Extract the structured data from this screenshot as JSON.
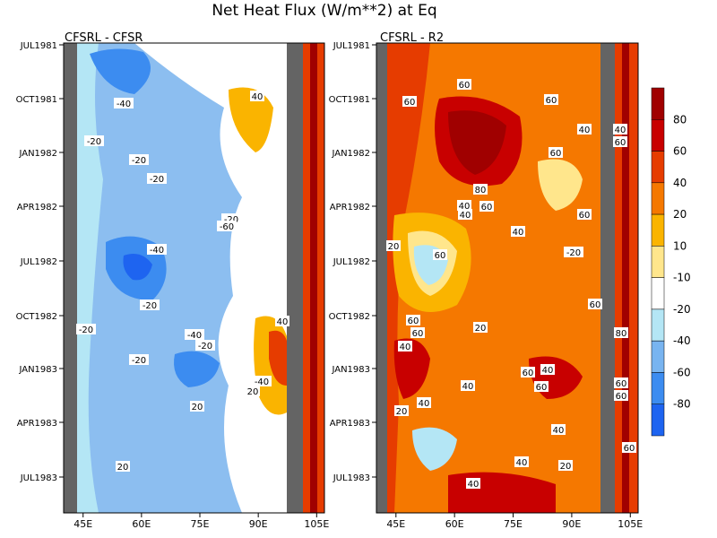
{
  "title": "Net Heat Flux (W/m**2) at Eq",
  "colors": {
    "land": "#646464",
    "levels": [
      "#1e64f0",
      "#3c8cf0",
      "#78b4f0",
      "#b4e6f5",
      "#ffffff",
      "#ffe68c",
      "#fab400",
      "#f57800",
      "#e63c00",
      "#c80000",
      "#a00000"
    ]
  },
  "chart_data": [
    {
      "type": "heatmap",
      "title": "CFSRL - CFSR",
      "xlabel": "",
      "ylabel": "",
      "x_ticks": [
        "45E",
        "60E",
        "75E",
        "90E",
        "105E"
      ],
      "x_tick_values": [
        45,
        60,
        75,
        90,
        105
      ],
      "xlim": [
        40,
        107
      ],
      "y_ticks": [
        "JUL1981",
        "OCT1981",
        "JAN1982",
        "APR1982",
        "JUL1982",
        "OCT1982",
        "JAN1983",
        "APR1983",
        "JUL1983"
      ],
      "ylim": [
        "JUN1981",
        "SEP1983"
      ],
      "contour_labels": [
        "-40",
        "-20",
        "-20",
        "-20",
        "-20",
        "-60",
        "-40",
        "-20",
        "-20",
        "-40",
        "-20",
        "-20",
        "-40",
        "20",
        "20",
        "20",
        "40",
        "40"
      ],
      "summary": "Negative values (-20 to -60) dominate 40E-90E; positive values (20-80) near 90E-100E and east of 102E"
    },
    {
      "type": "heatmap",
      "title": "CFSRL - R2",
      "xlabel": "",
      "ylabel": "",
      "x_ticks": [
        "45E",
        "60E",
        "75E",
        "90E",
        "105E"
      ],
      "x_tick_values": [
        45,
        60,
        75,
        90,
        105
      ],
      "xlim": [
        40,
        107
      ],
      "y_ticks": [
        "JUL1981",
        "OCT1981",
        "JAN1982",
        "APR1982",
        "JUL1982",
        "OCT1982",
        "JAN1983",
        "APR1983",
        "JUL1983"
      ],
      "ylim": [
        "JUN1981",
        "SEP1983"
      ],
      "contour_labels": [
        "60",
        "40",
        "60",
        "40",
        "60",
        "20",
        "60",
        "80",
        "40",
        "60",
        "40",
        "60",
        "40",
        "20",
        "60",
        "-20",
        "60",
        "60",
        "60",
        "20",
        "40",
        "80",
        "60",
        "40",
        "60",
        "40",
        "60",
        "60",
        "40",
        "20",
        "40",
        "20",
        "40",
        "40",
        "60",
        "60",
        "60",
        "40",
        "60",
        "40",
        "60"
      ],
      "summary": "Mostly positive values (20-80+) across 40E-105E with a negative pocket (-20) near 50E mid-1982"
    }
  ],
  "colorbar": {
    "labels": [
      "80",
      "60",
      "40",
      "20",
      "10",
      "-10",
      "-20",
      "-40",
      "-60",
      "-80"
    ]
  }
}
